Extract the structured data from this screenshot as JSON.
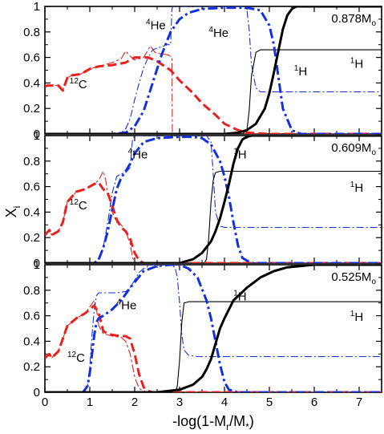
{
  "figure": {
    "ylabel_main": "X",
    "ylabel_sub": "i",
    "xlabel_parts": [
      "-log(1-M",
      "r",
      "/M",
      "*",
      ")"
    ]
  },
  "colors": {
    "carbon": "#e8211f",
    "helium": "#1430e0",
    "hydrogen": "#000000"
  },
  "chart_data": [
    {
      "type": "line",
      "panel_label": {
        "value": "0.878M",
        "sub": "o"
      },
      "xlim": [
        0,
        7.5
      ],
      "ylim": [
        0,
        1
      ],
      "xticks": [
        "0",
        "1",
        "2",
        "3",
        "4",
        "5",
        "6",
        "7"
      ],
      "yticks": [
        "0",
        "0.2",
        "0.4",
        "0.6",
        "0.8",
        "1"
      ],
      "annotations": [
        {
          "sup": "12",
          "text": "C",
          "x": 0.55,
          "y": 0.36
        },
        {
          "sup": "4",
          "text": "He",
          "x": 2.25,
          "y": 0.82
        },
        {
          "sup": "4",
          "text": "He",
          "x": 3.65,
          "y": 0.76
        },
        {
          "sup": "1",
          "text": "H",
          "x": 5.55,
          "y": 0.46
        },
        {
          "sup": "1",
          "text": "H",
          "x": 6.8,
          "y": 0.52
        }
      ],
      "series": [
        {
          "element": "12C",
          "model": "thick",
          "x": [
            0,
            0.05,
            0.3,
            0.4,
            0.5,
            0.6,
            0.8,
            1.0,
            1.2,
            1.5,
            1.8,
            2.0,
            2.3,
            2.5,
            2.8,
            3.0,
            3.3,
            3.5,
            3.8,
            4.0,
            4.3,
            4.5,
            5.0,
            7.5
          ],
          "y": [
            0.37,
            0.38,
            0.38,
            0.34,
            0.44,
            0.46,
            0.47,
            0.51,
            0.53,
            0.54,
            0.56,
            0.6,
            0.6,
            0.57,
            0.5,
            0.42,
            0.32,
            0.24,
            0.15,
            0.08,
            0.03,
            0.01,
            0.0,
            0.0
          ]
        },
        {
          "element": "12C",
          "model": "thin",
          "x": [
            0,
            0.05,
            0.3,
            0.4,
            0.5,
            0.6,
            0.8,
            1.0,
            1.2,
            1.5,
            1.7,
            1.8,
            1.9,
            2.0,
            2.2,
            2.35,
            2.45,
            2.55,
            2.75,
            2.83,
            2.84,
            2.9,
            7.5
          ],
          "y": [
            0.37,
            0.38,
            0.38,
            0.34,
            0.44,
            0.46,
            0.47,
            0.51,
            0.53,
            0.56,
            0.59,
            0.65,
            0.61,
            0.58,
            0.6,
            0.69,
            0.64,
            0.63,
            0.62,
            0.6,
            0.0,
            0.0,
            0.0
          ]
        },
        {
          "element": "4He",
          "model": "thick",
          "x": [
            0,
            1.5,
            1.8,
            2.0,
            2.2,
            2.4,
            2.6,
            2.8,
            3.0,
            3.2,
            3.5,
            4.0,
            4.5,
            4.8,
            5.0,
            5.1,
            5.2,
            5.3,
            5.5,
            5.7,
            7.5
          ],
          "y": [
            0.0,
            0.0,
            0.01,
            0.06,
            0.18,
            0.4,
            0.62,
            0.8,
            0.9,
            0.95,
            0.98,
            0.99,
            0.99,
            0.97,
            0.85,
            0.7,
            0.45,
            0.2,
            0.03,
            0.0,
            0.0
          ]
        },
        {
          "element": "4He",
          "model": "thin",
          "x": [
            0,
            1.6,
            1.7,
            1.8,
            1.9,
            2.0,
            2.1,
            2.2,
            2.3,
            2.4,
            2.55,
            2.6,
            2.7,
            2.8,
            2.83,
            2.85,
            4.4,
            4.5,
            4.55,
            4.6,
            4.7,
            4.8,
            5.0,
            7.5
          ],
          "y": [
            0.0,
            0.0,
            0.01,
            0.04,
            0.12,
            0.27,
            0.4,
            0.52,
            0.6,
            0.66,
            0.68,
            0.68,
            0.7,
            0.7,
            0.98,
            1.0,
            1.0,
            0.97,
            0.82,
            0.55,
            0.36,
            0.33,
            0.33,
            0.33
          ]
        },
        {
          "element": "1H",
          "model": "thick",
          "x": [
            0,
            4.0,
            4.3,
            4.5,
            4.7,
            4.9,
            5.0,
            5.1,
            5.2,
            5.3,
            5.4,
            5.5,
            5.6,
            5.7,
            7.5
          ],
          "y": [
            0.0,
            0.0,
            0.01,
            0.03,
            0.08,
            0.2,
            0.32,
            0.48,
            0.65,
            0.82,
            0.93,
            0.98,
            1.0,
            1.0,
            1.0
          ]
        },
        {
          "element": "1H",
          "model": "thin",
          "x": [
            0,
            4.4,
            4.5,
            4.55,
            4.6,
            4.7,
            4.8,
            5.0,
            7.5
          ],
          "y": [
            0.0,
            0.0,
            0.03,
            0.18,
            0.45,
            0.64,
            0.66,
            0.66,
            0.66
          ]
        }
      ]
    },
    {
      "type": "line",
      "panel_label": {
        "value": "0.609M",
        "sub": "o"
      },
      "xlim": [
        0,
        7.5
      ],
      "ylim": [
        0,
        1
      ],
      "xticks": [
        "0",
        "1",
        "2",
        "3",
        "4",
        "5",
        "6",
        "7"
      ],
      "yticks": [
        "0",
        "0.2",
        "0.4",
        "0.6",
        "0.8",
        "1"
      ],
      "annotations": [
        {
          "sup": "4",
          "text": "He",
          "x": 1.85,
          "y": 0.82
        },
        {
          "sup": "12",
          "text": "C",
          "x": 0.55,
          "y": 0.42
        },
        {
          "sup": "1",
          "text": "H",
          "x": 4.2,
          "y": 0.82
        },
        {
          "sup": "1",
          "text": "H",
          "x": 6.8,
          "y": 0.56
        }
      ],
      "series": [
        {
          "element": "12C",
          "model": "thick",
          "x": [
            0,
            0.1,
            0.15,
            0.3,
            0.4,
            0.5,
            0.7,
            0.9,
            1.0,
            1.1,
            1.2,
            1.3,
            1.4,
            1.5,
            1.6,
            1.7,
            1.8,
            1.9,
            2.0,
            2.1,
            2.2,
            7.5
          ],
          "y": [
            0.22,
            0.26,
            0.22,
            0.25,
            0.32,
            0.48,
            0.56,
            0.58,
            0.6,
            0.62,
            0.63,
            0.58,
            0.55,
            0.45,
            0.34,
            0.28,
            0.25,
            0.19,
            0.08,
            0.02,
            0.0,
            0.0
          ]
        },
        {
          "element": "12C",
          "model": "thin",
          "x": [
            0,
            0.1,
            0.15,
            0.3,
            0.4,
            0.5,
            0.7,
            0.9,
            1.0,
            1.1,
            1.2,
            1.3,
            1.35,
            1.4,
            1.5,
            1.6,
            1.7,
            1.8,
            1.9,
            1.95,
            2.0,
            7.5
          ],
          "y": [
            0.22,
            0.26,
            0.22,
            0.25,
            0.32,
            0.48,
            0.56,
            0.58,
            0.6,
            0.62,
            0.65,
            0.72,
            0.66,
            0.55,
            0.4,
            0.32,
            0.3,
            0.25,
            0.15,
            0.05,
            0.0,
            0.0
          ]
        },
        {
          "element": "4He",
          "model": "thick",
          "x": [
            0,
            1.1,
            1.2,
            1.3,
            1.4,
            1.5,
            1.6,
            1.7,
            1.8,
            1.9,
            2.0,
            2.2,
            2.5,
            3.0,
            3.3,
            3.5,
            3.7,
            3.9,
            4.0,
            4.1,
            4.2,
            4.3,
            4.4,
            4.6,
            7.5
          ],
          "y": [
            0.0,
            0.0,
            0.03,
            0.12,
            0.25,
            0.42,
            0.58,
            0.67,
            0.72,
            0.78,
            0.86,
            0.95,
            0.98,
            0.99,
            0.99,
            0.98,
            0.93,
            0.8,
            0.68,
            0.52,
            0.32,
            0.14,
            0.04,
            0.0,
            0.0
          ]
        },
        {
          "element": "4He",
          "model": "thin",
          "x": [
            0,
            1.1,
            1.2,
            1.3,
            1.4,
            1.5,
            1.6,
            1.7,
            1.8,
            1.9,
            1.95,
            2.0,
            3.6,
            3.7,
            3.75,
            3.8,
            3.9,
            4.0,
            7.5
          ],
          "y": [
            0.0,
            0.0,
            0.03,
            0.12,
            0.32,
            0.55,
            0.68,
            0.7,
            0.71,
            0.75,
            0.96,
            1.0,
            1.0,
            0.95,
            0.7,
            0.4,
            0.29,
            0.28,
            0.28
          ]
        },
        {
          "element": "1H",
          "model": "thick",
          "x": [
            0,
            3.0,
            3.3,
            3.5,
            3.7,
            3.8,
            3.9,
            4.0,
            4.1,
            4.2,
            4.3,
            4.4,
            4.5,
            4.6,
            7.5
          ],
          "y": [
            0.0,
            0.0,
            0.03,
            0.08,
            0.17,
            0.25,
            0.35,
            0.48,
            0.62,
            0.78,
            0.9,
            0.97,
            0.99,
            1.0,
            1.0
          ]
        },
        {
          "element": "1H",
          "model": "thin",
          "x": [
            0,
            3.55,
            3.6,
            3.65,
            3.7,
            3.75,
            3.8,
            3.9,
            7.5
          ],
          "y": [
            0.0,
            0.0,
            0.03,
            0.2,
            0.48,
            0.65,
            0.71,
            0.72,
            0.72
          ]
        }
      ]
    },
    {
      "type": "line",
      "panel_label": {
        "value": "0.525M",
        "sub": "o"
      },
      "xlim": [
        0,
        7.5
      ],
      "ylim": [
        0,
        1
      ],
      "xticks": [
        "0",
        "1",
        "2",
        "3",
        "4",
        "5",
        "6",
        "7"
      ],
      "yticks": [
        "0",
        "0.2",
        "0.4",
        "0.6",
        "0.8",
        "1"
      ],
      "annotations": [
        {
          "sup": "4",
          "text": "He",
          "x": 1.6,
          "y": 0.65
        },
        {
          "sup": "12",
          "text": "C",
          "x": 0.5,
          "y": 0.24
        },
        {
          "sup": "1",
          "text": "H",
          "x": 4.2,
          "y": 0.72
        },
        {
          "sup": "1",
          "text": "H",
          "x": 6.8,
          "y": 0.56
        }
      ],
      "series": [
        {
          "element": "12C",
          "model": "thick",
          "x": [
            0,
            0.1,
            0.15,
            0.3,
            0.4,
            0.5,
            0.7,
            0.9,
            1.0,
            1.1,
            1.2,
            1.3,
            1.4,
            1.5,
            1.7,
            1.8,
            1.9,
            2.0,
            2.1,
            2.2,
            2.3,
            2.4,
            7.5
          ],
          "y": [
            0.27,
            0.3,
            0.27,
            0.32,
            0.42,
            0.52,
            0.58,
            0.62,
            0.65,
            0.68,
            0.62,
            0.48,
            0.46,
            0.45,
            0.44,
            0.44,
            0.42,
            0.3,
            0.14,
            0.04,
            0.01,
            0.0,
            0.0
          ]
        },
        {
          "element": "12C",
          "model": "thin",
          "x": [
            0,
            0.1,
            0.15,
            0.3,
            0.4,
            0.5,
            0.7,
            0.9,
            1.0,
            1.1,
            1.15,
            1.2,
            1.3,
            1.4,
            1.5,
            1.7,
            1.8,
            1.9,
            2.0,
            2.1,
            2.2,
            2.3,
            7.5
          ],
          "y": [
            0.27,
            0.3,
            0.27,
            0.32,
            0.42,
            0.52,
            0.58,
            0.62,
            0.67,
            0.72,
            0.65,
            0.52,
            0.46,
            0.45,
            0.44,
            0.43,
            0.4,
            0.3,
            0.12,
            0.03,
            0.01,
            0.0,
            0.0
          ]
        },
        {
          "element": "4He",
          "model": "thick",
          "x": [
            0,
            0.85,
            0.95,
            1.0,
            1.05,
            1.1,
            1.15,
            1.2,
            1.3,
            1.5,
            1.7,
            1.9,
            2.2,
            2.5,
            2.8,
            3.0,
            3.2,
            3.4,
            3.6,
            3.7,
            3.8,
            3.9,
            4.0,
            4.1,
            4.3,
            7.5
          ],
          "y": [
            0.0,
            0.0,
            0.05,
            0.15,
            0.3,
            0.45,
            0.55,
            0.58,
            0.6,
            0.65,
            0.72,
            0.82,
            0.95,
            0.99,
            1.0,
            1.0,
            0.97,
            0.9,
            0.72,
            0.58,
            0.4,
            0.22,
            0.08,
            0.02,
            0.0,
            0.0
          ]
        },
        {
          "element": "4He",
          "model": "thin",
          "x": [
            0,
            0.85,
            0.95,
            1.0,
            1.05,
            1.1,
            1.15,
            1.2,
            1.3,
            1.6,
            1.8,
            1.9,
            2.0,
            2.1,
            2.2,
            2.3,
            2.4,
            2.6,
            2.8,
            2.9,
            2.95,
            3.0,
            3.05,
            3.1,
            3.2,
            3.4,
            7.5
          ],
          "y": [
            0.0,
            0.0,
            0.05,
            0.2,
            0.45,
            0.65,
            0.76,
            0.78,
            0.78,
            0.78,
            0.79,
            0.82,
            0.88,
            0.94,
            0.97,
            0.99,
            1.0,
            1.0,
            1.0,
            0.98,
            0.9,
            0.7,
            0.45,
            0.33,
            0.29,
            0.28,
            0.28
          ]
        },
        {
          "element": "1H",
          "model": "thick",
          "x": [
            0,
            2.5,
            3.0,
            3.3,
            3.5,
            3.6,
            3.7,
            3.8,
            3.9,
            4.0,
            4.2,
            4.5,
            4.8,
            5.1,
            5.4,
            5.7,
            6.0,
            6.2,
            7.5
          ],
          "y": [
            0.0,
            0.0,
            0.02,
            0.06,
            0.12,
            0.18,
            0.26,
            0.38,
            0.5,
            0.58,
            0.72,
            0.82,
            0.9,
            0.95,
            0.98,
            0.99,
            1.0,
            1.0,
            1.0
          ]
        },
        {
          "element": "1H",
          "model": "thin",
          "x": [
            0,
            2.9,
            2.95,
            3.0,
            3.05,
            3.1,
            3.2,
            7.5
          ],
          "y": [
            0.0,
            0.0,
            0.05,
            0.25,
            0.55,
            0.7,
            0.71,
            0.71
          ]
        }
      ]
    }
  ]
}
